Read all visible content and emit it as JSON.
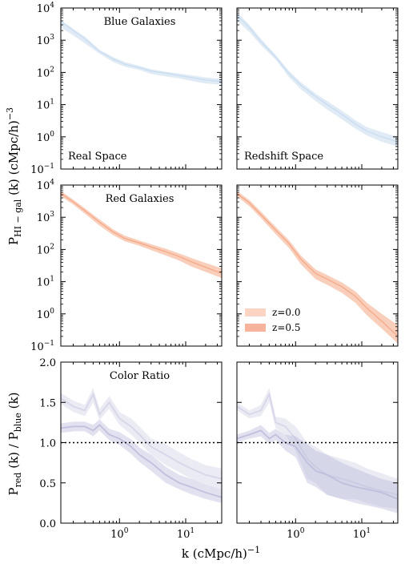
{
  "figure": {
    "xlabel_main": "k (cMpc/h)",
    "xlabel_exp": "−1",
    "ylabel_top": {
      "main": "P",
      "sub": "HI − gal",
      "rest": " (k) (cMpc/h)",
      "exp": "−3"
    },
    "ylabel_bottom": {
      "p1": "P",
      "sub1": "red",
      "mid": " (k) / P",
      "sub2": "blue",
      "rest": " (k)"
    }
  },
  "chart_data": [
    {
      "id": "blue-real",
      "type": "area",
      "title": "Blue Galaxies",
      "annotation": "Real Space",
      "x_scale": "log",
      "y_scale": "log",
      "xlim": [
        0.13,
        35
      ],
      "ylim": [
        0.1,
        10000
      ],
      "color": "#c6dbef",
      "x": [
        0.13,
        0.2,
        0.3,
        0.5,
        0.8,
        1.2,
        2,
        3,
        5,
        8,
        12,
        20,
        35
      ],
      "series": [
        {
          "values": [
            3800,
            2000,
            1100,
            450,
            260,
            180,
            140,
            110,
            95,
            80,
            70,
            58,
            52
          ],
          "low": [
            2500,
            1400,
            800,
            380,
            210,
            150,
            120,
            90,
            75,
            65,
            55,
            45,
            42
          ],
          "high": [
            4200,
            2300,
            1300,
            500,
            300,
            210,
            160,
            125,
            105,
            92,
            82,
            70,
            62
          ]
        }
      ]
    },
    {
      "id": "blue-redshift",
      "type": "area",
      "title": "",
      "annotation": "Redshift Space",
      "x_scale": "log",
      "y_scale": "log",
      "xlim": [
        0.13,
        35
      ],
      "ylim": [
        0.1,
        10000
      ],
      "color": "#c6dbef",
      "x": [
        0.13,
        0.2,
        0.3,
        0.5,
        0.8,
        1.2,
        2,
        3,
        5,
        8,
        12,
        20,
        35
      ],
      "series": [
        {
          "values": [
            6000,
            2500,
            900,
            300,
            90,
            40,
            18,
            10,
            5,
            2.5,
            1.5,
            1,
            0.7
          ],
          "low": [
            4000,
            1800,
            700,
            250,
            70,
            30,
            13,
            7,
            3.5,
            1.8,
            1.1,
            0.7,
            0.5
          ],
          "high": [
            7500,
            3000,
            1100,
            350,
            110,
            50,
            22,
            13,
            6.5,
            3.3,
            2,
            1.4,
            1.0
          ]
        }
      ]
    },
    {
      "id": "red-real",
      "type": "area",
      "title": "Red Galaxies",
      "annotation": "",
      "x_scale": "log",
      "y_scale": "log",
      "xlim": [
        0.13,
        35
      ],
      "ylim": [
        0.1,
        10000
      ],
      "color": "#f4a582",
      "x": [
        0.13,
        0.2,
        0.3,
        0.5,
        0.8,
        1.2,
        2,
        3,
        5,
        8,
        12,
        20,
        35
      ],
      "series": [
        {
          "values": [
            5500,
            3000,
            1600,
            700,
            350,
            220,
            160,
            120,
            85,
            60,
            42,
            28,
            18
          ],
          "low": [
            4500,
            2500,
            1300,
            550,
            280,
            180,
            130,
            95,
            65,
            45,
            30,
            20,
            13
          ],
          "high": [
            6500,
            3500,
            1900,
            850,
            420,
            270,
            190,
            145,
            105,
            75,
            55,
            38,
            26
          ]
        }
      ]
    },
    {
      "id": "red-redshift",
      "type": "area",
      "title": "",
      "annotation": "",
      "x_scale": "log",
      "y_scale": "log",
      "xlim": [
        0.13,
        35
      ],
      "ylim": [
        0.1,
        10000
      ],
      "color": "#f4a582",
      "x": [
        0.13,
        0.2,
        0.3,
        0.5,
        0.8,
        1.2,
        2,
        3,
        5,
        8,
        12,
        20,
        35
      ],
      "series": [
        {
          "values": [
            5500,
            2800,
            1200,
            400,
            150,
            50,
            18,
            12,
            7,
            3.5,
            1.5,
            0.6,
            0.2
          ],
          "low": [
            4500,
            2200,
            950,
            300,
            110,
            35,
            12,
            8,
            4.5,
            2.2,
            0.9,
            0.35,
            0.12
          ],
          "high": [
            6500,
            3400,
            1500,
            500,
            190,
            65,
            24,
            16,
            9.5,
            5,
            2.2,
            1.0,
            0.45
          ]
        }
      ],
      "legend": {
        "placement": "lower-left",
        "entries": [
          {
            "label": "z=0.0",
            "color": "#fbd4c3"
          },
          {
            "label": "z=0.5",
            "color": "#f7b39c"
          }
        ]
      }
    },
    {
      "id": "ratio-real",
      "type": "line",
      "title": "Color Ratio",
      "annotation": "",
      "x_scale": "log",
      "y_scale": "linear",
      "xlim": [
        0.13,
        35
      ],
      "ylim": [
        0.0,
        2.0
      ],
      "yticks": [
        0.0,
        0.5,
        1.0,
        1.5,
        2.0
      ],
      "reference_y": 1.0,
      "color": "#bcbddc",
      "x": [
        0.13,
        0.2,
        0.3,
        0.4,
        0.5,
        0.7,
        1.0,
        1.5,
        2,
        3,
        5,
        8,
        12,
        20,
        35
      ],
      "series": [
        {
          "values": [
            1.55,
            1.45,
            1.4,
            1.6,
            1.35,
            1.5,
            1.3,
            1.2,
            1.1,
            0.95,
            0.85,
            0.75,
            0.68,
            0.6,
            0.55
          ],
          "low": [
            1.48,
            1.38,
            1.33,
            1.5,
            1.28,
            1.42,
            1.22,
            1.1,
            1.0,
            0.85,
            0.72,
            0.63,
            0.55,
            0.48,
            0.42
          ],
          "high": [
            1.62,
            1.52,
            1.47,
            1.68,
            1.42,
            1.58,
            1.38,
            1.3,
            1.2,
            1.05,
            0.98,
            0.88,
            0.8,
            0.72,
            0.68
          ]
        },
        {
          "values": [
            1.18,
            1.2,
            1.2,
            1.15,
            1.22,
            1.1,
            1.05,
            0.95,
            0.85,
            0.75,
            0.6,
            0.5,
            0.45,
            0.38,
            0.32
          ],
          "low": [
            1.12,
            1.14,
            1.14,
            1.08,
            1.15,
            1.03,
            0.97,
            0.86,
            0.76,
            0.65,
            0.5,
            0.42,
            0.36,
            0.3,
            0.25
          ],
          "high": [
            1.24,
            1.26,
            1.26,
            1.22,
            1.29,
            1.17,
            1.13,
            1.04,
            0.94,
            0.85,
            0.7,
            0.6,
            0.55,
            0.48,
            0.42
          ]
        }
      ]
    },
    {
      "id": "ratio-redshift",
      "type": "line",
      "title": "",
      "annotation": "",
      "x_scale": "log",
      "y_scale": "linear",
      "xlim": [
        0.13,
        35
      ],
      "ylim": [
        0.0,
        2.0
      ],
      "yticks": [
        0.0,
        0.5,
        1.0,
        1.5,
        2.0
      ],
      "reference_y": 1.0,
      "color": "#bcbddc",
      "x": [
        0.13,
        0.2,
        0.3,
        0.4,
        0.5,
        0.7,
        1.0,
        1.5,
        2,
        3,
        5,
        8,
        12,
        20,
        35
      ],
      "series": [
        {
          "values": [
            1.45,
            1.35,
            1.4,
            1.6,
            1.25,
            1.2,
            1.05,
            0.8,
            0.7,
            0.6,
            0.55,
            0.5,
            0.45,
            0.4,
            0.35
          ],
          "low": [
            1.4,
            1.3,
            1.33,
            1.5,
            1.18,
            1.1,
            0.9,
            0.55,
            0.5,
            0.35,
            0.3,
            0.3,
            0.25,
            0.2,
            0.18
          ],
          "high": [
            1.5,
            1.4,
            1.47,
            1.68,
            1.32,
            1.3,
            1.2,
            1.0,
            0.95,
            0.85,
            0.8,
            0.75,
            0.68,
            0.62,
            0.55
          ]
        },
        {
          "values": [
            1.05,
            1.1,
            1.15,
            1.05,
            1.1,
            1.0,
            0.95,
            0.75,
            0.65,
            0.6,
            0.5,
            0.45,
            0.42,
            0.38,
            0.3
          ],
          "low": [
            1.0,
            1.05,
            1.08,
            0.98,
            1.03,
            0.9,
            0.82,
            0.5,
            0.45,
            0.35,
            0.3,
            0.25,
            0.22,
            0.18,
            0.12
          ],
          "high": [
            1.1,
            1.15,
            1.22,
            1.12,
            1.17,
            1.1,
            1.08,
            0.98,
            0.9,
            0.85,
            0.75,
            0.68,
            0.62,
            0.55,
            0.5
          ]
        }
      ]
    }
  ]
}
